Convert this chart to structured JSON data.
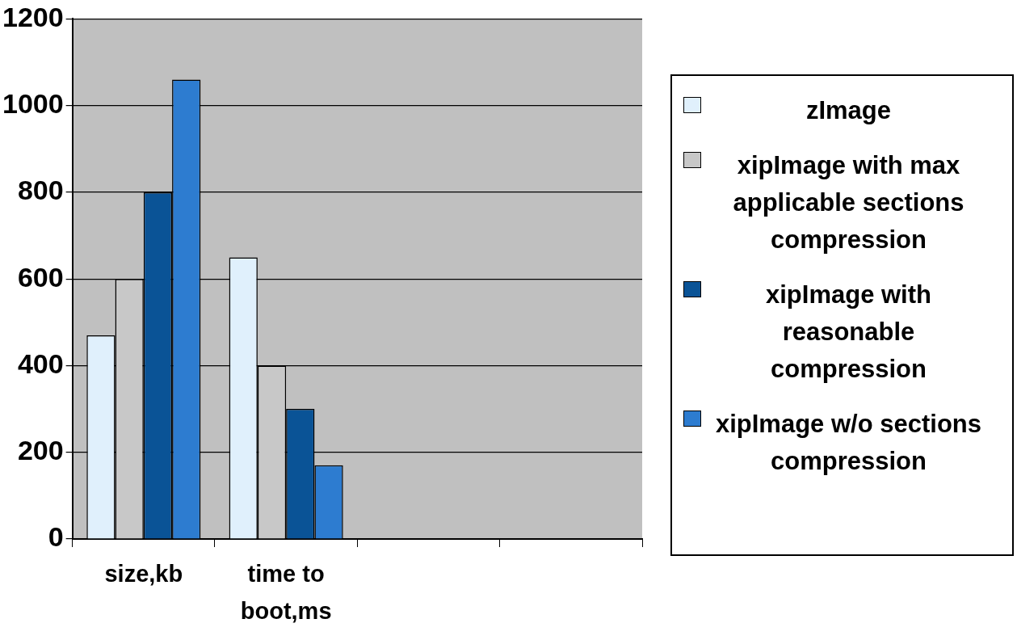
{
  "chart_data": {
    "type": "bar",
    "categories": [
      "size,kb",
      "time to boot,ms",
      null,
      null
    ],
    "series": [
      {
        "name": "zImage",
        "color": "#e0f0fc",
        "values": [
          470,
          650,
          null,
          null
        ]
      },
      {
        "name": "xipImage with max applicable sections compression",
        "color": "#c8c8c8",
        "values": [
          600,
          400,
          null,
          null
        ]
      },
      {
        "name": "xipImage with reasonable compression",
        "color": "#0a5396",
        "values": [
          800,
          300,
          null,
          null
        ]
      },
      {
        "name": "xipImage w/o sections compression",
        "color": "#2d7cd0",
        "values": [
          1060,
          170,
          null,
          null
        ]
      }
    ],
    "ylim": [
      0,
      1200
    ],
    "yticks": [
      0,
      200,
      400,
      600,
      800,
      1000,
      1200
    ],
    "grid": "y",
    "legend": "right"
  }
}
